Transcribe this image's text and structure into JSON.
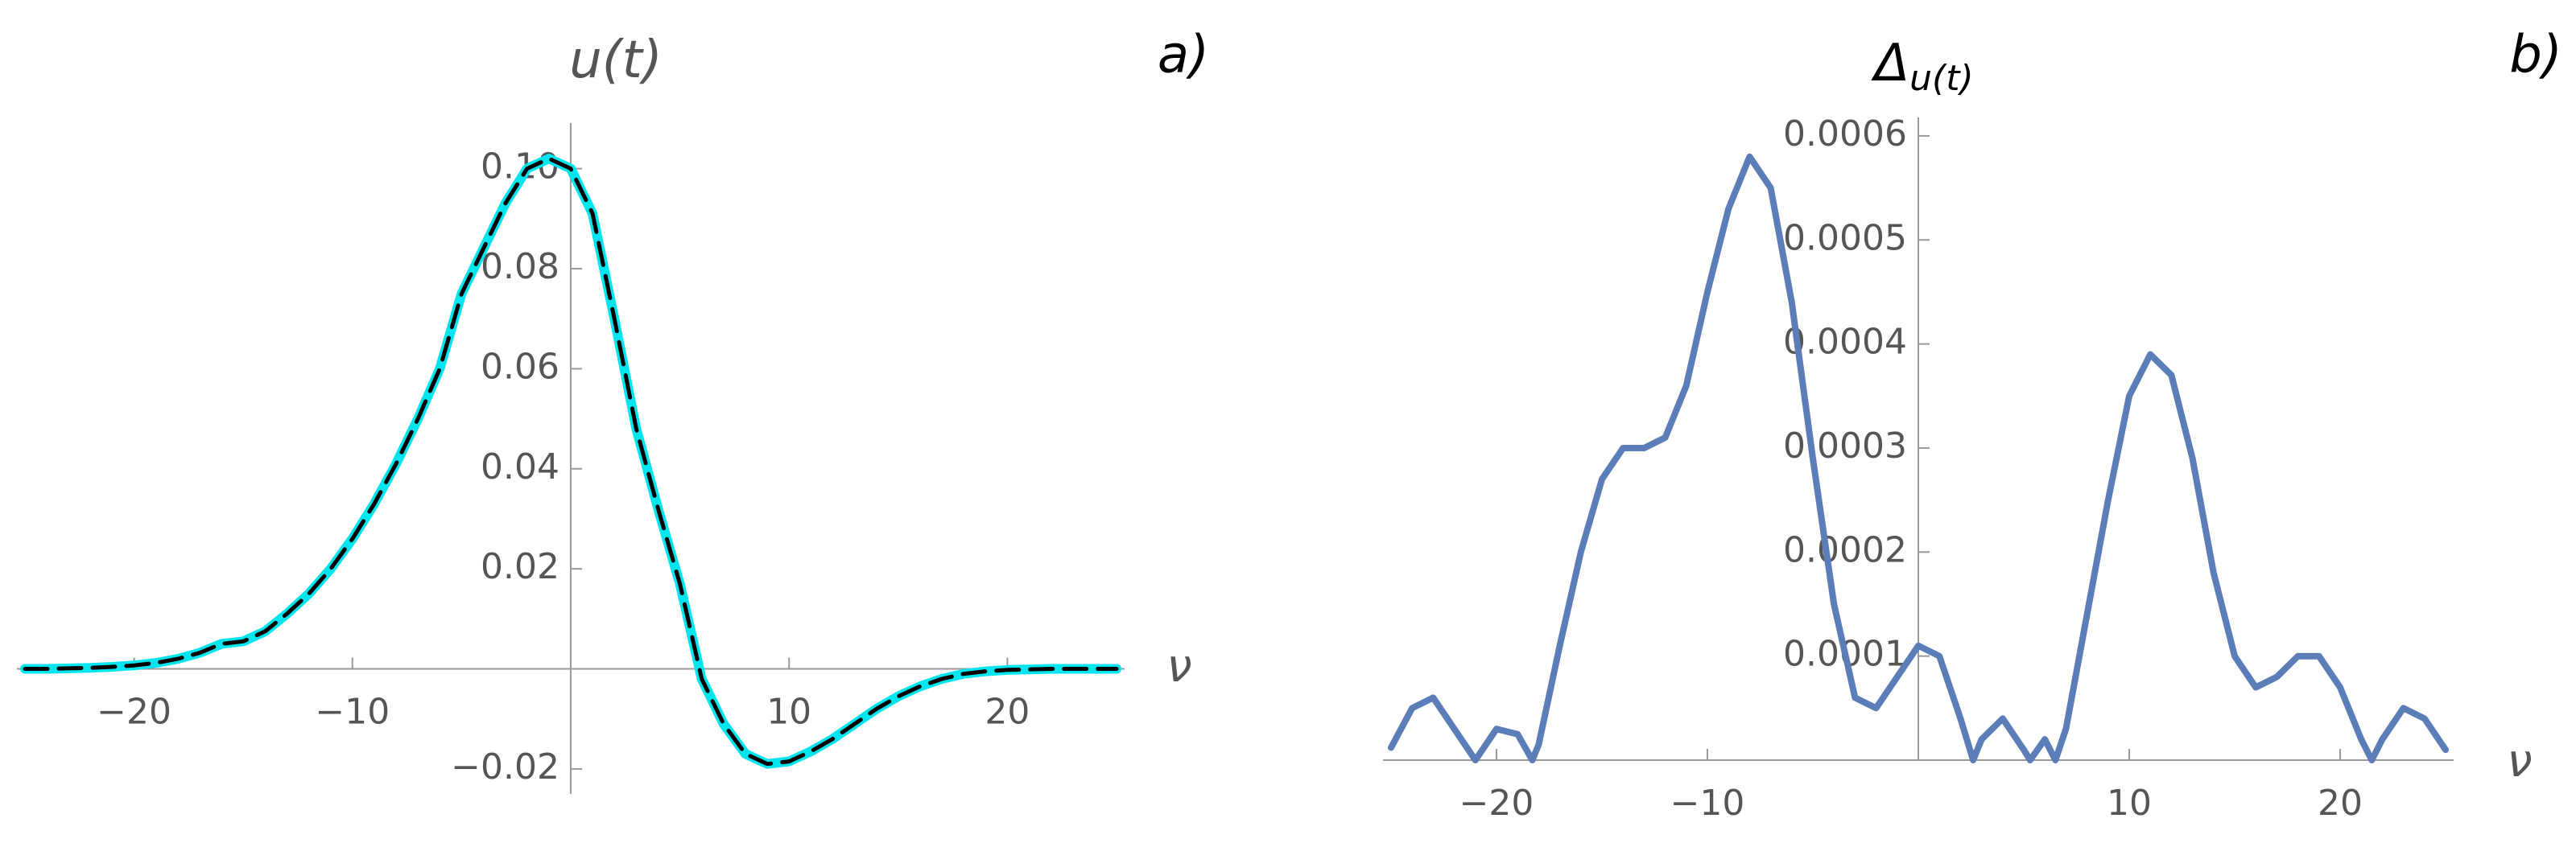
{
  "chart_data": [
    {
      "type": "line",
      "title": "u(t)",
      "x_label": "ν",
      "panel_label": "a)",
      "x": [
        -25,
        -24,
        -23,
        -22,
        -21,
        -20,
        -19,
        -18,
        -17,
        -16,
        -15,
        -14,
        -13,
        -12,
        -11,
        -10,
        -9,
        -8,
        -7,
        -6,
        -5,
        -4,
        -3,
        -2,
        -1,
        0,
        1,
        2,
        3,
        4,
        5,
        6,
        7,
        8,
        9,
        10,
        11,
        12,
        13,
        14,
        15,
        16,
        17,
        18,
        19,
        20,
        21,
        22,
        23,
        24,
        25
      ],
      "series": [
        {
          "color": "#00e5ee",
          "style": "solid",
          "values": [
            0,
            0,
            0.0001,
            0.0002,
            0.0004,
            0.0007,
            0.0012,
            0.002,
            0.0032,
            0.005,
            0.0055,
            0.0075,
            0.011,
            0.015,
            0.02,
            0.026,
            0.033,
            0.041,
            0.05,
            0.06,
            0.075,
            0.084,
            0.093,
            0.1,
            0.102,
            0.1,
            0.091,
            0.07,
            0.048,
            0.032,
            0.017,
            -0.002,
            -0.011,
            -0.017,
            -0.019,
            -0.0185,
            -0.0165,
            -0.014,
            -0.011,
            -0.008,
            -0.0055,
            -0.0035,
            -0.002,
            -0.001,
            -0.0005,
            -0.0002,
            -0.0001,
            0,
            0,
            0,
            0
          ]
        },
        {
          "color": "#000000",
          "style": "dashed",
          "values": [
            0,
            0,
            0.0001,
            0.0002,
            0.0004,
            0.0007,
            0.0012,
            0.002,
            0.0032,
            0.005,
            0.0055,
            0.0075,
            0.011,
            0.015,
            0.02,
            0.026,
            0.033,
            0.041,
            0.05,
            0.06,
            0.075,
            0.084,
            0.093,
            0.1,
            0.102,
            0.1,
            0.091,
            0.07,
            0.048,
            0.032,
            0.017,
            -0.002,
            -0.011,
            -0.017,
            -0.019,
            -0.0185,
            -0.0165,
            -0.014,
            -0.011,
            -0.008,
            -0.0055,
            -0.0035,
            -0.002,
            -0.001,
            -0.0005,
            -0.0002,
            -0.0001,
            0,
            0,
            0,
            0
          ]
        }
      ],
      "xlim": [
        -25,
        25
      ],
      "ylim": [
        -0.025,
        0.1075
      ],
      "xticks": [
        {
          "value": -20,
          "label": "−20"
        },
        {
          "value": -10,
          "label": "−10"
        },
        10,
        20
      ],
      "yticks": [
        {
          "value": -0.02,
          "label": "−0.02"
        },
        0.02,
        0.04,
        0.06,
        0.08,
        {
          "value": 0.1,
          "label": "0.10"
        }
      ]
    },
    {
      "type": "line",
      "title": "Δ",
      "title_subscript": "u(t)",
      "x_label": "ν",
      "panel_label": "b)",
      "x": [
        -25,
        -24,
        -23,
        -22,
        -21,
        -20,
        -19,
        -18.3,
        -18,
        -17,
        -16,
        -15,
        -14,
        -13,
        -12,
        -11,
        -10,
        -9,
        -8,
        -7,
        -6,
        -5,
        -4,
        -3,
        -2,
        -1,
        0,
        1,
        2,
        2.6,
        3,
        4,
        5,
        5.3,
        6,
        6.5,
        7,
        8,
        9,
        10,
        11,
        12,
        13,
        14,
        15,
        16,
        17,
        18,
        19,
        20,
        21,
        21.5,
        22,
        23,
        24,
        25
      ],
      "series": [
        {
          "color": "#5b7db8",
          "style": "solid",
          "values": [
            1.2e-05,
            5e-05,
            6e-05,
            3e-05,
            0,
            3e-05,
            2.5e-05,
            0,
            1.5e-05,
            0.00011,
            0.0002,
            0.00027,
            0.0003,
            0.0003,
            0.00031,
            0.00036,
            0.00045,
            0.00053,
            0.00058,
            0.00055,
            0.00044,
            0.00029,
            0.00015,
            6e-05,
            5e-05,
            8e-05,
            0.00011,
            0.0001,
            4e-05,
            0,
            2e-05,
            4e-05,
            1e-05,
            0,
            2e-05,
            0,
            3e-05,
            0.00014,
            0.00025,
            0.00035,
            0.00039,
            0.00037,
            0.00029,
            0.00018,
            0.0001,
            7e-05,
            8e-05,
            0.0001,
            0.0001,
            7e-05,
            2e-05,
            0,
            2e-05,
            5e-05,
            4e-05,
            1e-05
          ]
        }
      ],
      "xlim": [
        -25,
        25
      ],
      "ylim": [
        0,
        0.00061
      ],
      "xticks": [
        {
          "value": -20,
          "label": "−20"
        },
        {
          "value": -10,
          "label": "−10"
        },
        10,
        20
      ],
      "yticks": [
        0.0001,
        0.0002,
        0.0003,
        0.0004,
        0.0005,
        0.0006
      ]
    }
  ]
}
